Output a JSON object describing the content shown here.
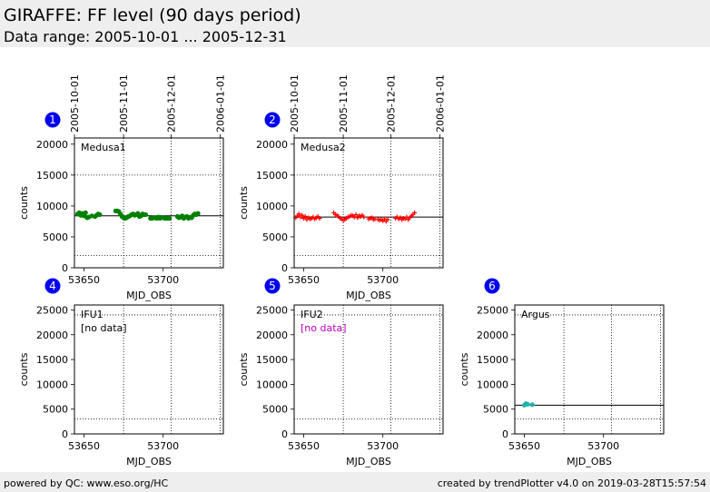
{
  "header": {
    "title": "GIRAFFE: FF level (90 days period)",
    "subtitle": "Data range: 2005-10-01 ... 2005-12-31"
  },
  "footer": {
    "left": "powered by QC: www.eso.org/HC",
    "right": "created by trendPlotter v4.0 on 2019-03-28T15:57:54"
  },
  "colors": {
    "panel_badge": "#0000ee",
    "medusa1": "#008000",
    "medusa2": "#ff0000",
    "argus": "#20b2aa",
    "no_data_ifu2": "#bb00bb"
  },
  "date_ticks": [
    "2005-10-01",
    "2005-11-01",
    "2005-12-01",
    "2006-01-01"
  ],
  "chart_data": [
    {
      "type": "scatter",
      "panel_id": "1",
      "label": "Medusa1",
      "xlabel": "MJD_OBS",
      "ylabel": "counts",
      "xlim": [
        53644,
        53738
      ],
      "ylim": [
        0,
        21000
      ],
      "xticks": [
        53650,
        53700
      ],
      "yticks": [
        0,
        5000,
        10000,
        15000,
        20000
      ],
      "date_tick_mjd": [
        53644,
        53675,
        53705,
        53736
      ],
      "reference_line": 8400,
      "thresholds": [
        2000,
        15000
      ],
      "marker": "circle",
      "color_key": "medusa1",
      "points": [
        [
          53646,
          8700
        ],
        [
          53647,
          8900
        ],
        [
          53648,
          8500
        ],
        [
          53649,
          8800
        ],
        [
          53650,
          8400
        ],
        [
          53651,
          8900
        ],
        [
          53652,
          8100
        ],
        [
          53653,
          8200
        ],
        [
          53655,
          8400
        ],
        [
          53657,
          8300
        ],
        [
          53658,
          8500
        ],
        [
          53659,
          8700
        ],
        [
          53660,
          8600
        ],
        [
          53670,
          9200
        ],
        [
          53671,
          9200
        ],
        [
          53672,
          9100
        ],
        [
          53673,
          8700
        ],
        [
          53674,
          8300
        ],
        [
          53675,
          8100
        ],
        [
          53676,
          8000
        ],
        [
          53677,
          8100
        ],
        [
          53678,
          8300
        ],
        [
          53679,
          8400
        ],
        [
          53680,
          8600
        ],
        [
          53681,
          8700
        ],
        [
          53682,
          8500
        ],
        [
          53683,
          8600
        ],
        [
          53684,
          8800
        ],
        [
          53685,
          8300
        ],
        [
          53686,
          8400
        ],
        [
          53687,
          8700
        ],
        [
          53688,
          8600
        ],
        [
          53689,
          8600
        ],
        [
          53692,
          8000
        ],
        [
          53693,
          8000
        ],
        [
          53694,
          8100
        ],
        [
          53695,
          8100
        ],
        [
          53696,
          8000
        ],
        [
          53697,
          8200
        ],
        [
          53698,
          8000
        ],
        [
          53700,
          8100
        ],
        [
          53701,
          8000
        ],
        [
          53702,
          8000
        ],
        [
          53703,
          8000
        ],
        [
          53704,
          8000
        ],
        [
          53709,
          8300
        ],
        [
          53710,
          8100
        ],
        [
          53711,
          8200
        ],
        [
          53712,
          8400
        ],
        [
          53713,
          8000
        ],
        [
          53714,
          8200
        ],
        [
          53715,
          8300
        ],
        [
          53716,
          8000
        ],
        [
          53718,
          8100
        ],
        [
          53719,
          8500
        ],
        [
          53720,
          8700
        ],
        [
          53721,
          8600
        ],
        [
          53722,
          8800
        ]
      ],
      "no_data": false
    },
    {
      "type": "scatter",
      "panel_id": "2",
      "label": "Medusa2",
      "xlabel": "MJD_OBS",
      "ylabel": "counts",
      "xlim": [
        53644,
        53738
      ],
      "ylim": [
        0,
        21000
      ],
      "xticks": [
        53650,
        53700
      ],
      "yticks": [
        0,
        5000,
        10000,
        15000,
        20000
      ],
      "date_tick_mjd": [
        53644,
        53675,
        53705,
        53736
      ],
      "reference_line": 8200,
      "thresholds": [
        2000,
        15000
      ],
      "marker": "plus",
      "color_key": "medusa2",
      "points": [
        [
          53645,
          8100
        ],
        [
          53646,
          8400
        ],
        [
          53647,
          8700
        ],
        [
          53648,
          8200
        ],
        [
          53649,
          8500
        ],
        [
          53650,
          8000
        ],
        [
          53651,
          8300
        ],
        [
          53652,
          7800
        ],
        [
          53653,
          8100
        ],
        [
          53654,
          7900
        ],
        [
          53655,
          8000
        ],
        [
          53656,
          8200
        ],
        [
          53657,
          7900
        ],
        [
          53658,
          8100
        ],
        [
          53659,
          8300
        ],
        [
          53660,
          8000
        ],
        [
          53669,
          8900
        ],
        [
          53670,
          8600
        ],
        [
          53671,
          8500
        ],
        [
          53672,
          8300
        ],
        [
          53673,
          8000
        ],
        [
          53674,
          7900
        ],
        [
          53675,
          7700
        ],
        [
          53676,
          7800
        ],
        [
          53677,
          8000
        ],
        [
          53678,
          8200
        ],
        [
          53679,
          8300
        ],
        [
          53680,
          8500
        ],
        [
          53681,
          8400
        ],
        [
          53682,
          8200
        ],
        [
          53683,
          8600
        ],
        [
          53684,
          8100
        ],
        [
          53685,
          8400
        ],
        [
          53686,
          8300
        ],
        [
          53687,
          8500
        ],
        [
          53688,
          8200
        ],
        [
          53691,
          7900
        ],
        [
          53692,
          8000
        ],
        [
          53693,
          8100
        ],
        [
          53694,
          7800
        ],
        [
          53695,
          7900
        ],
        [
          53697,
          7800
        ],
        [
          53698,
          7700
        ],
        [
          53699,
          7800
        ],
        [
          53700,
          7600
        ],
        [
          53701,
          7900
        ],
        [
          53702,
          7500
        ],
        [
          53703,
          7800
        ],
        [
          53708,
          8000
        ],
        [
          53709,
          8200
        ],
        [
          53710,
          7900
        ],
        [
          53711,
          8100
        ],
        [
          53712,
          7800
        ],
        [
          53713,
          8000
        ],
        [
          53714,
          7900
        ],
        [
          53715,
          8200
        ],
        [
          53716,
          7800
        ],
        [
          53717,
          8100
        ],
        [
          53718,
          8400
        ],
        [
          53719,
          8600
        ],
        [
          53720,
          8900
        ]
      ],
      "no_data": false
    },
    {
      "type": "scatter",
      "panel_id": "4",
      "label": "IFU1",
      "no_data_label": "[no data]",
      "no_data_color_key": "",
      "xlabel": "MJD_OBS",
      "ylabel": "counts",
      "xlim": [
        53644,
        53738
      ],
      "ylim": [
        0,
        26000
      ],
      "xticks": [
        53650,
        53700
      ],
      "yticks": [
        0,
        5000,
        10000,
        15000,
        20000,
        25000
      ],
      "date_tick_mjd": [
        53644,
        53675,
        53705,
        53736
      ],
      "reference_line": null,
      "thresholds": [
        3000,
        24000
      ],
      "points": [],
      "no_data": true
    },
    {
      "type": "scatter",
      "panel_id": "5",
      "label": "IFU2",
      "no_data_label": "[no data]",
      "no_data_color_key": "no_data_ifu2",
      "xlabel": "MJD_OBS",
      "ylabel": "counts",
      "xlim": [
        53644,
        53738
      ],
      "ylim": [
        0,
        26000
      ],
      "xticks": [
        53650,
        53700
      ],
      "yticks": [
        0,
        5000,
        10000,
        15000,
        20000,
        25000
      ],
      "date_tick_mjd": [
        53644,
        53675,
        53705,
        53736
      ],
      "reference_line": null,
      "thresholds": [
        3000,
        24000
      ],
      "points": [],
      "no_data": true
    },
    {
      "type": "scatter",
      "panel_id": "6",
      "label": "Argus",
      "xlabel": "MJD_OBS",
      "ylabel": "counts",
      "xlim": [
        53644,
        53738
      ],
      "ylim": [
        0,
        26000
      ],
      "xticks": [
        53650,
        53700
      ],
      "yticks": [
        0,
        5000,
        10000,
        15000,
        20000,
        25000
      ],
      "date_tick_mjd": [
        53644,
        53675,
        53705,
        53736
      ],
      "reference_line": 5800,
      "thresholds": [
        3000,
        24000
      ],
      "marker": "circle",
      "color_key": "argus",
      "points": [
        [
          53650,
          5800
        ],
        [
          53651,
          6100
        ],
        [
          53652,
          6000
        ],
        [
          53655,
          5900
        ]
      ],
      "no_data": false
    }
  ]
}
